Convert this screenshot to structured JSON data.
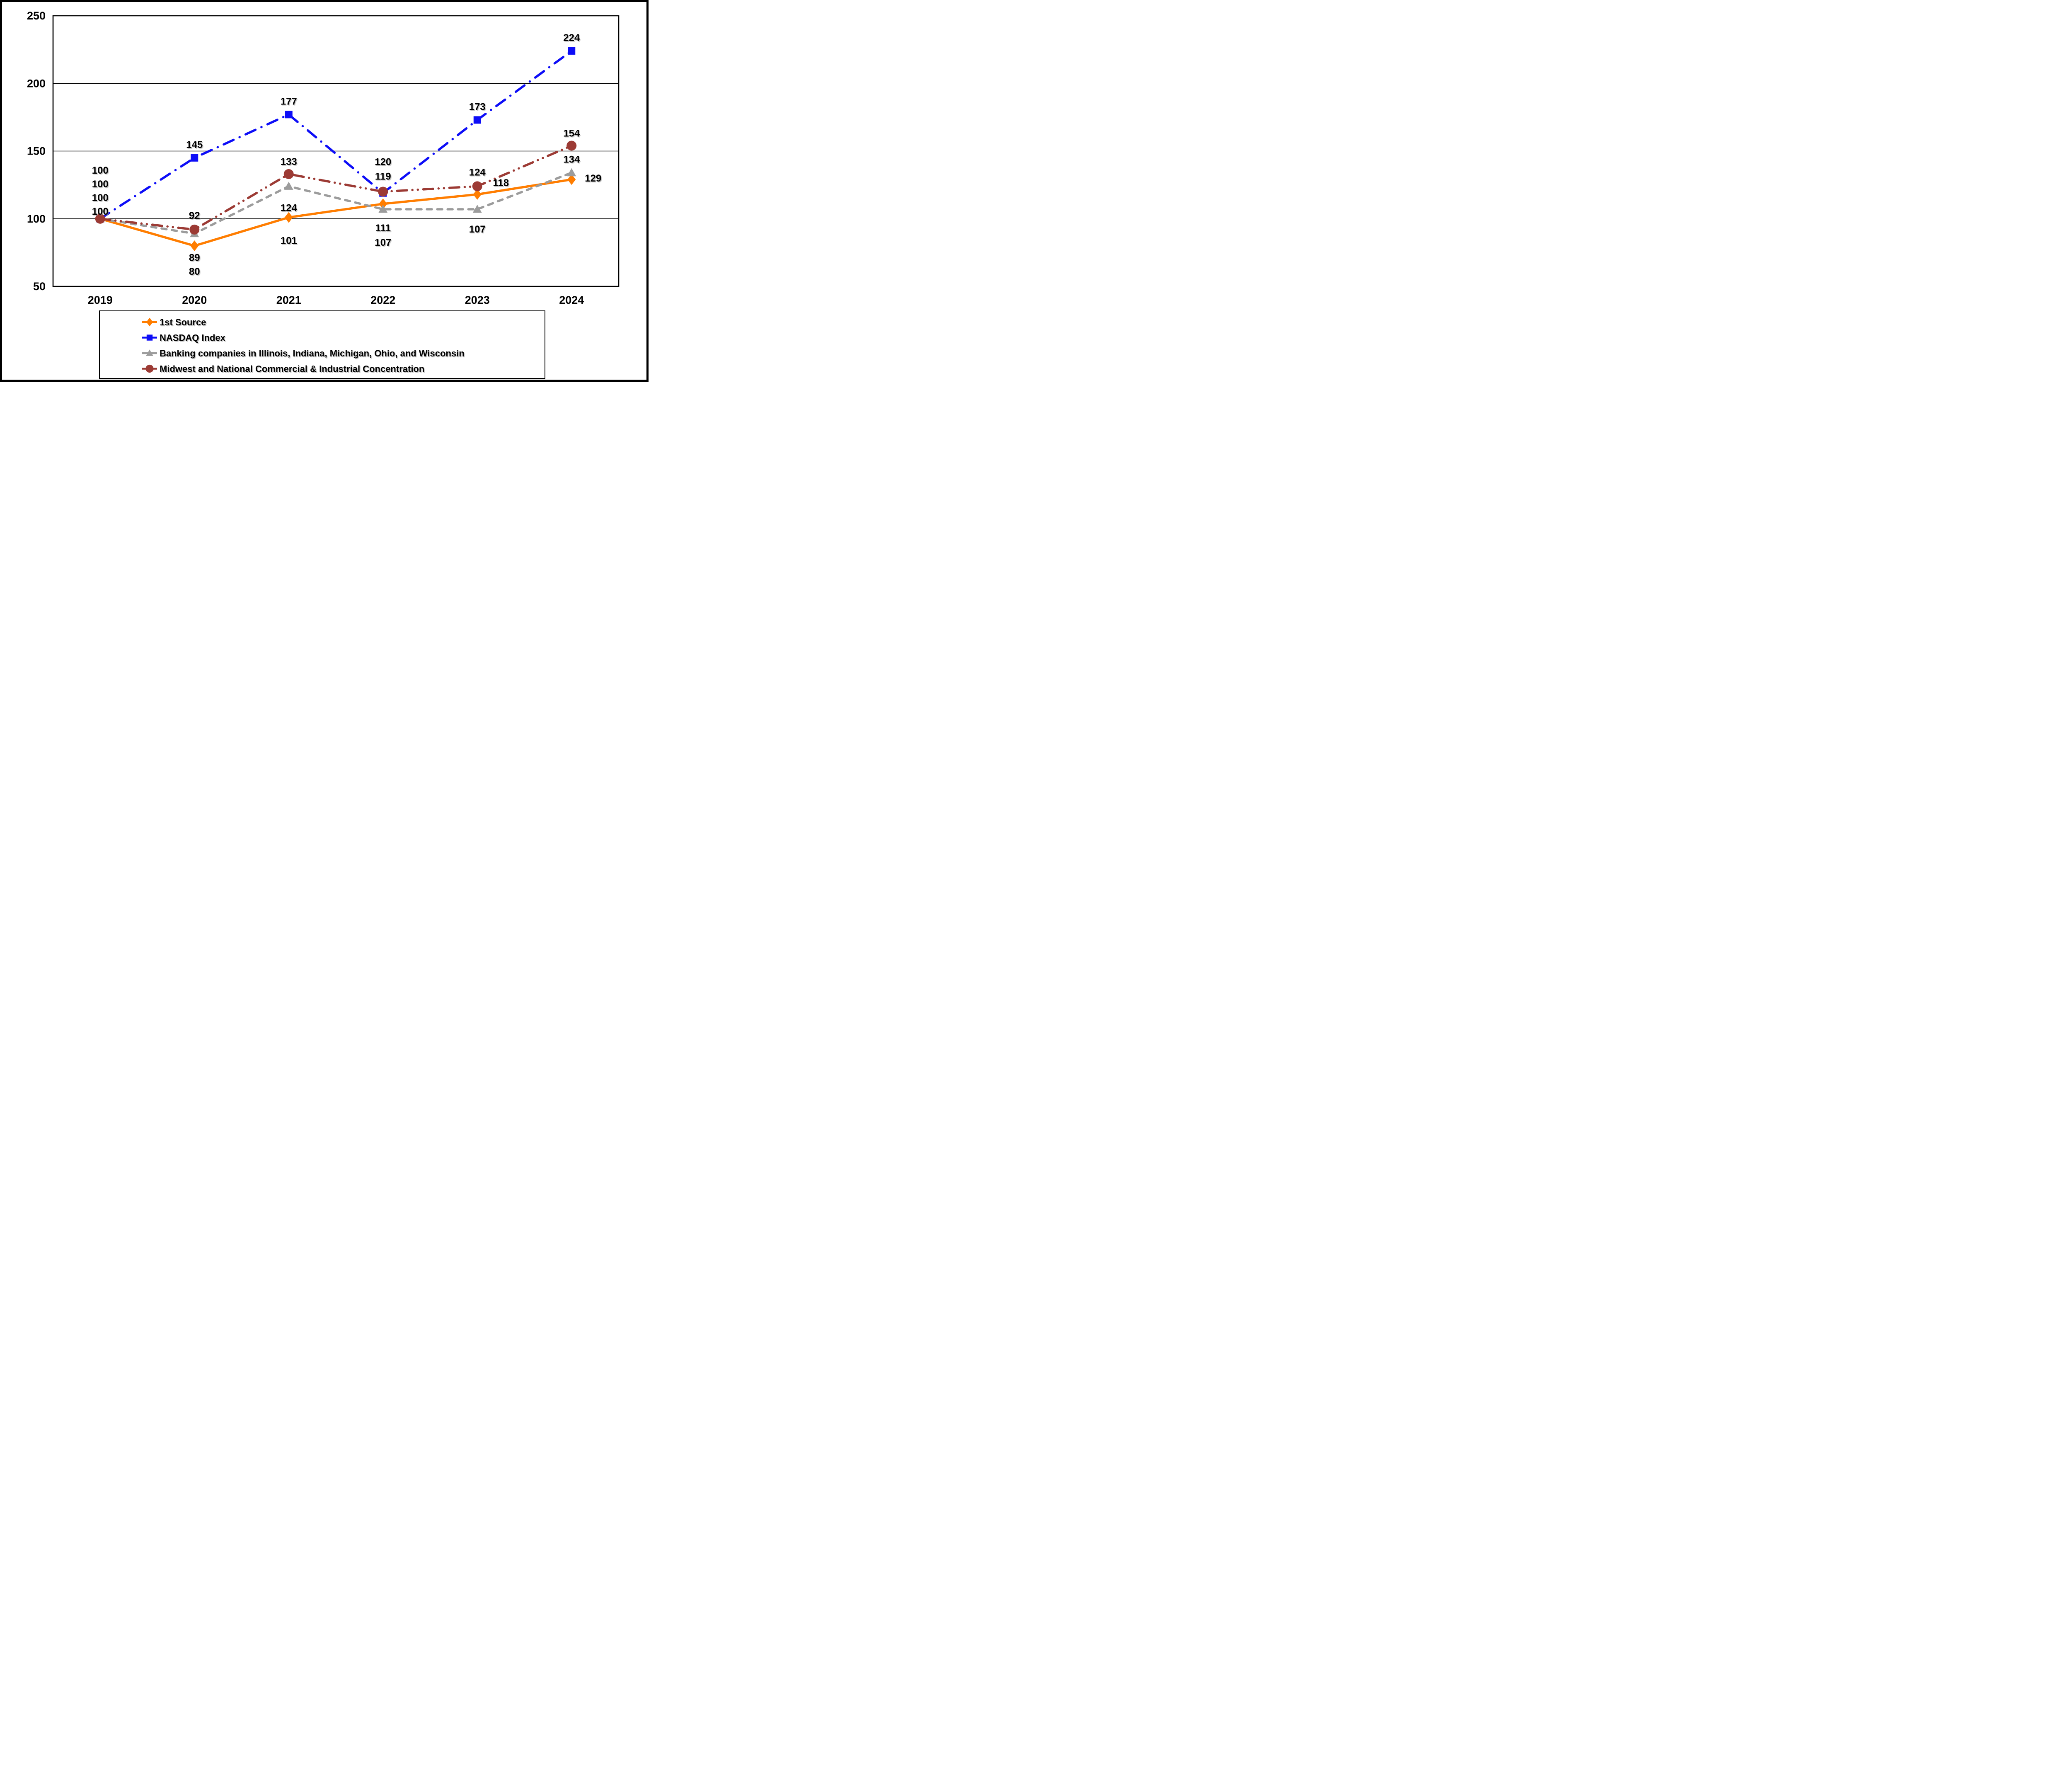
{
  "figure": {
    "background_color": "#FFFFFF",
    "frame_border_color": "#000000",
    "plot_border_color": "#000000",
    "gridline_color": "#000000"
  },
  "chart_data": {
    "type": "line",
    "title": "",
    "xlabel": "",
    "ylabel": "",
    "categories": [
      "2019",
      "2020",
      "2021",
      "2022",
      "2023",
      "2024"
    ],
    "ylim": [
      50,
      250
    ],
    "yticks": [
      50,
      100,
      150,
      200,
      250
    ],
    "grid": true,
    "legend_position": "bottom-left",
    "series": [
      {
        "name": "1st Source",
        "color": "#FF7D00",
        "marker": "diamond",
        "line_style": "solid",
        "values": [
          100,
          80,
          101,
          111,
          118,
          129
        ],
        "label_offsets": [
          [
            0,
            -18
          ],
          [
            0,
            62
          ],
          [
            0,
            56
          ],
          [
            0,
            58
          ],
          [
            57,
            -28
          ],
          [
            52,
            -3
          ]
        ]
      },
      {
        "name": "NASDAQ Index",
        "color": "#0D0DF7",
        "marker": "square",
        "line_style": "dash-dot",
        "values": [
          100,
          145,
          177,
          119,
          173,
          224
        ],
        "label_offsets": [
          [
            0,
            -117
          ],
          [
            0,
            -32
          ],
          [
            0,
            -32
          ],
          [
            0,
            -40
          ],
          [
            0,
            -32
          ],
          [
            0,
            -32
          ]
        ]
      },
      {
        "name": "Banking companies in Illinois, Indiana, Michigan, Ohio, and Wisconsin",
        "color": "#9C9C9C",
        "marker": "triangle",
        "line_style": "dashed",
        "values": [
          100,
          89,
          124,
          107,
          107,
          134
        ],
        "label_offsets": [
          [
            0,
            -51
          ],
          [
            0,
            58
          ],
          [
            0,
            52
          ],
          [
            0,
            80
          ],
          [
            0,
            48
          ],
          [
            0,
            -32
          ]
        ]
      },
      {
        "name": "Midwest and National Commercial & Industrial Concentration",
        "color": "#9C3A34",
        "marker": "circle",
        "line_style": "dash-dot-dot",
        "values": [
          100,
          92,
          133,
          120,
          124,
          154
        ],
        "label_offsets": [
          [
            0,
            -84
          ],
          [
            0,
            -34
          ],
          [
            0,
            -30
          ],
          [
            0,
            -72
          ],
          [
            0,
            -34
          ],
          [
            0,
            -30
          ]
        ]
      }
    ]
  }
}
